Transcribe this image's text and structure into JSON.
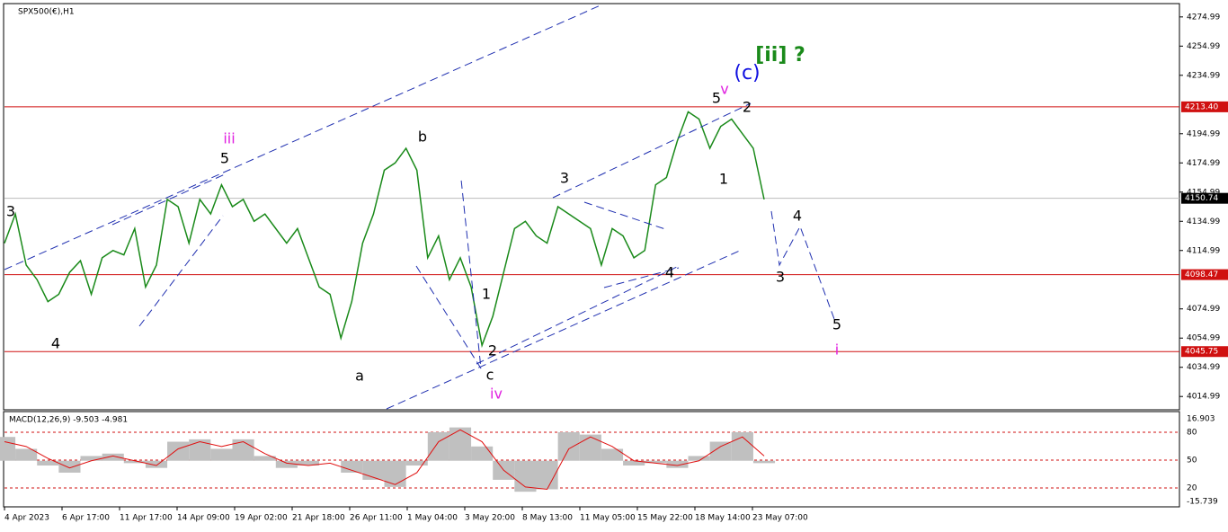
{
  "chart_data": {
    "type": "line",
    "title": "SPX500(€),H1",
    "price_axis": {
      "ylim": [
        4006.5,
        4283.5
      ],
      "yticks": [
        4274.99,
        4254.99,
        4234.99,
        4194.99,
        4174.99,
        4154.99,
        4134.99,
        4114.99,
        4074.99,
        4054.99,
        4034.99,
        4014.99
      ]
    },
    "levels": [
      {
        "value": 4213.4,
        "label": "4213.40",
        "color": "#d01010"
      },
      {
        "value": 4150.74,
        "label": "4150.74",
        "color": "#000000"
      },
      {
        "value": 4098.47,
        "label": "4098.47",
        "color": "#d01010"
      },
      {
        "value": 4045.75,
        "label": "4045.75",
        "color": "#d01010"
      }
    ],
    "time_labels": [
      "4 Apr 2023",
      "6 Apr 17:00",
      "11 Apr 17:00",
      "14 Apr 09:00",
      "19 Apr 02:00",
      "21 Apr 18:00",
      "26 Apr 11:00",
      "1 May 04:00",
      "3 May 20:00",
      "8 May 13:00",
      "11 May 05:00",
      "15 May 22:00",
      "18 May 14:00",
      "23 May 07:00"
    ],
    "series": [
      {
        "name": "SPX500",
        "color": "#1a8a1a",
        "values": [
          4120,
          4140,
          4105,
          4095,
          4080,
          4085,
          4100,
          4108,
          4085,
          4110,
          4115,
          4112,
          4130,
          4090,
          4105,
          4150,
          4145,
          4120,
          4150,
          4140,
          4160,
          4145,
          4150,
          4135,
          4140,
          4130,
          4120,
          4130,
          4110,
          4090,
          4085,
          4055,
          4080,
          4120,
          4140,
          4170,
          4175,
          4185,
          4170,
          4110,
          4125,
          4095,
          4110,
          4090,
          4050,
          4070,
          4100,
          4130,
          4135,
          4125,
          4120,
          4145,
          4140,
          4135,
          4130,
          4105,
          4130,
          4125,
          4110,
          4115,
          4160,
          4165,
          4190,
          4210,
          4205,
          4185,
          4200,
          4205,
          4195,
          4185,
          4150
        ]
      }
    ],
    "annotations": [
      "3",
      "4",
      "iii",
      "5",
      "b",
      "a",
      "1",
      "2",
      "c",
      "iv",
      "3",
      "4",
      "5",
      "v",
      "(c)",
      "[ii] ?",
      "2",
      "1",
      "4",
      "3",
      "5",
      "i"
    ],
    "macd": {
      "label": "MACD(12,26,9) -9.503 -4.981",
      "ylim": [
        -18.6,
        19.9
      ],
      "ticks": [
        "16.903",
        "80",
        "50",
        "20",
        "-15.739"
      ],
      "histogram": [
        10,
        5,
        -2,
        -5,
        2,
        3,
        -1,
        -3,
        8,
        9,
        5,
        9,
        2,
        -3,
        -2,
        0,
        -5,
        -8,
        -11,
        -2,
        12,
        14,
        6,
        -8,
        -13,
        -12,
        12,
        11,
        5,
        -2,
        -1,
        -3,
        2,
        8,
        12,
        -1
      ],
      "signal": [
        8,
        6,
        1,
        -3,
        0,
        2,
        0,
        -2,
        5,
        8,
        6,
        8,
        3,
        -1,
        -2,
        -1,
        -4,
        -7,
        -10,
        -5,
        8,
        13,
        8,
        -4,
        -11,
        -12,
        5,
        10,
        6,
        0,
        -1,
        -2,
        0,
        6,
        10,
        2
      ]
    }
  }
}
